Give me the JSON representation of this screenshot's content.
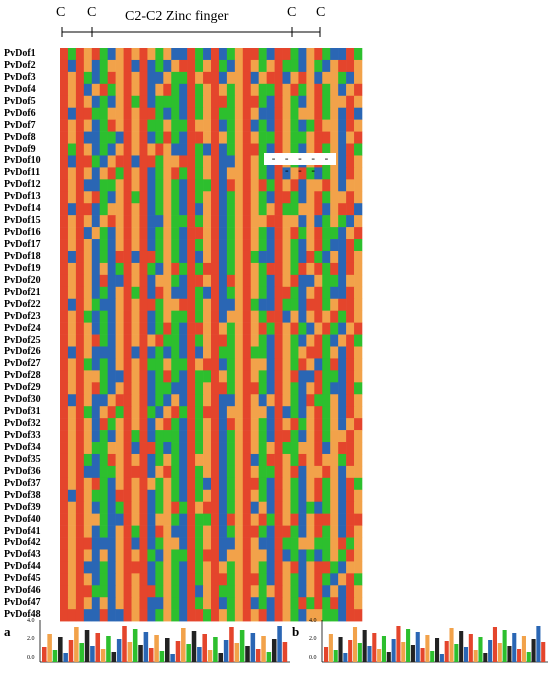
{
  "header": {
    "motif_label": "C2-C2 Zinc finger",
    "cys_marks": [
      "C",
      "C",
      "C",
      "C"
    ]
  },
  "colors": {
    "red": "#E4452C",
    "green": "#2DBF2E",
    "blue": "#2A66B4",
    "orange": "#F2A24A",
    "gray": "#9AA0A6",
    "gap": "#FFFFFF"
  },
  "alignment": {
    "sequences": [
      "PvDof1",
      "PvDof2",
      "PvDof3",
      "PvDof4",
      "PvDof5",
      "PvDof6",
      "PvDof7",
      "PvDof8",
      "PvDof9",
      "PvDof10",
      "PvDof11",
      "PvDof12",
      "PvDof13",
      "PvDof14",
      "PvDof15",
      "PvDof16",
      "PvDof17",
      "PvDof18",
      "PvDof19",
      "PvDof20",
      "PvDof21",
      "PvDof22",
      "PvDof23",
      "PvDof24",
      "PvDof25",
      "PvDof26",
      "PvDof27",
      "PvDof28",
      "PvDof29",
      "PvDof30",
      "PvDof31",
      "PvDof32",
      "PvDof33",
      "PvDof34",
      "PvDof35",
      "PvDof36",
      "PvDof37",
      "PvDof38",
      "PvDof39",
      "PvDof40",
      "PvDof41",
      "PvDof42",
      "PvDof43",
      "PvDof44",
      "PvDof45",
      "PvDof46",
      "PvDof47",
      "PvDof48"
    ],
    "gap_row": "PvDof10",
    "gap_text": "- - - - - - - -"
  },
  "logos": [
    {
      "label": "a",
      "y_ticks": [
        "4.0",
        "2.0",
        "0.0"
      ]
    },
    {
      "label": "b",
      "y_ticks": [
        "4.0",
        "2.0",
        "0.0"
      ]
    }
  ]
}
